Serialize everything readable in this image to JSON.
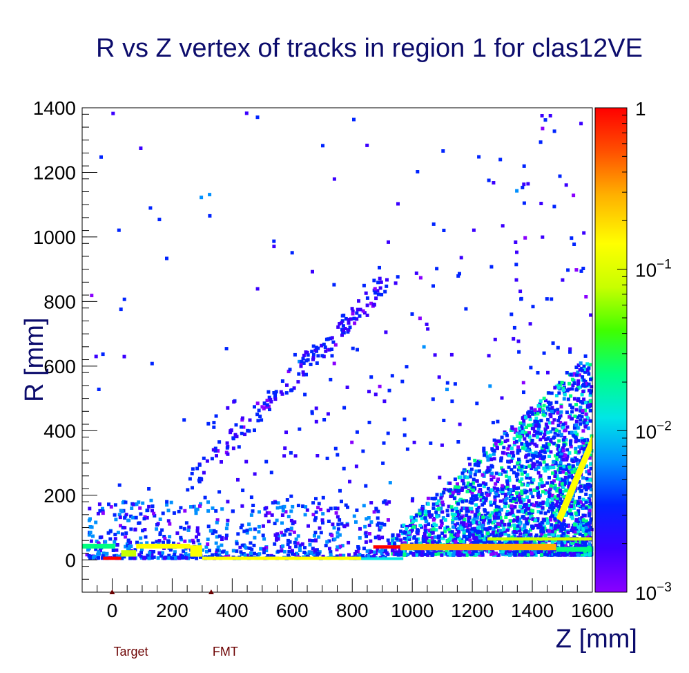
{
  "chart_data": {
    "type": "heatmap",
    "title": "R vs Z vertex of tracks in region 1 for clas12VE",
    "xlabel": "Z [mm]",
    "ylabel": "R [mm]",
    "xlim": [
      -100,
      1600
    ],
    "ylim": [
      -100,
      1400
    ],
    "x_ticks": [
      0,
      200,
      400,
      600,
      800,
      1000,
      1200,
      1400,
      1600
    ],
    "y_ticks": [
      0,
      200,
      400,
      600,
      800,
      1000,
      1200,
      1400
    ],
    "x_tick_labels": [
      "0",
      "200",
      "400",
      "600",
      "800",
      "1000",
      "1200",
      "1400",
      "1600"
    ],
    "y_tick_labels": [
      "0",
      "200",
      "400",
      "600",
      "800",
      "1000",
      "1200",
      "1400"
    ],
    "z_scale": "log",
    "zlim": [
      0.001,
      1
    ],
    "colorbar_labels": [
      {
        "value": 1,
        "base": "1",
        "exp": ""
      },
      {
        "value": 0.1,
        "base": "10",
        "exp": "−1"
      },
      {
        "value": 0.01,
        "base": "10",
        "exp": "−2"
      },
      {
        "value": 0.001,
        "base": "10",
        "exp": "−3"
      }
    ],
    "grid": false,
    "palette": [
      "#8a00ff",
      "#3b00ff",
      "#0024ff",
      "#0090ff",
      "#00e6e6",
      "#00ff80",
      "#40ff00",
      "#c8ff00",
      "#ffff00",
      "#ffb000",
      "#ff5000",
      "#ff0000"
    ],
    "markers": [
      {
        "label": "Target",
        "z": 0
      },
      {
        "label": "FMT",
        "z": 330
      }
    ],
    "bands": [
      {
        "z": [
          -100,
          10
        ],
        "r": [
          35,
          50
        ],
        "level": 0.02
      },
      {
        "z": [
          -30,
          30
        ],
        "r": [
          0,
          10
        ],
        "level": 0.9
      },
      {
        "z": [
          30,
          80
        ],
        "r": [
          10,
          30
        ],
        "level": 0.1
      },
      {
        "z": [
          80,
          260
        ],
        "r": [
          35,
          50
        ],
        "level": 0.15
      },
      {
        "z": [
          260,
          300
        ],
        "r": [
          10,
          45
        ],
        "level": 0.12
      },
      {
        "z": [
          300,
          830
        ],
        "r": [
          0,
          10
        ],
        "level": 0.12
      },
      {
        "z": [
          830,
          970
        ],
        "r": [
          0,
          8
        ],
        "level": 0.01
      },
      {
        "z": [
          870,
          1100
        ],
        "r": [
          35,
          45
        ],
        "level": 0.85
      },
      {
        "z": [
          960,
          1480
        ],
        "r": [
          30,
          50
        ],
        "level": 0.3
      },
      {
        "z": [
          1480,
          1600
        ],
        "r": [
          25,
          40
        ],
        "level": 0.02
      },
      {
        "z": [
          1250,
          1600
        ],
        "r": [
          60,
          70
        ],
        "level": 0.06
      },
      {
        "z": [
          1480,
          1600
        ],
        "r": [
          130,
          390
        ],
        "level": 0.12
      }
    ]
  }
}
